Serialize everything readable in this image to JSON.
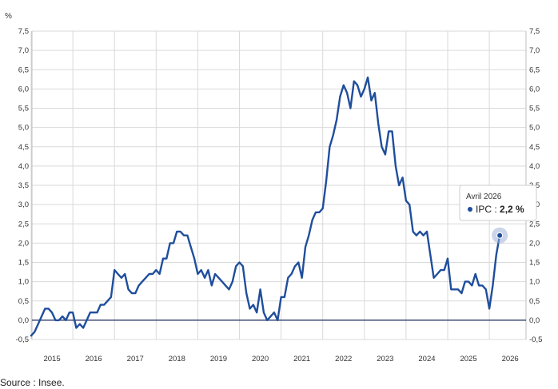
{
  "chart_data": {
    "type": "line",
    "unit_label": "%",
    "y_range": [
      -0.5,
      7.5
    ],
    "y_ticks": [
      "-0,5",
      "0,0",
      "0,5",
      "1,0",
      "1,5",
      "2,0",
      "2,5",
      "3,0",
      "3,5",
      "4,0",
      "4,5",
      "5,0",
      "5,5",
      "6,0",
      "6,5",
      "7,0",
      "7,5"
    ],
    "x_labels": [
      "2015",
      "2016",
      "2017",
      "2018",
      "2019",
      "2020",
      "2021",
      "2022",
      "2023",
      "2024",
      "2025",
      "2026"
    ],
    "line_color": "#1f4e9c",
    "grid": true,
    "series": [
      {
        "values": [
          -0.4,
          -0.3,
          -0.1,
          0.1,
          0.3,
          0.3,
          0.2,
          0.0,
          0.0,
          0.1,
          0.0,
          0.2,
          0.2,
          -0.2,
          -0.1,
          -0.2,
          0.0,
          0.2,
          0.2,
          0.2,
          0.4,
          0.4,
          0.5,
          0.6,
          1.3,
          1.2,
          1.1,
          1.2,
          0.8,
          0.7,
          0.7,
          0.9,
          1.0,
          1.1,
          1.2,
          1.2,
          1.3,
          1.2,
          1.6,
          1.6,
          2.0,
          2.0,
          2.3,
          2.3,
          2.2,
          2.2,
          1.9,
          1.6,
          1.2,
          1.3,
          1.1,
          1.3,
          0.9,
          1.2,
          1.1,
          1.0,
          0.9,
          0.8,
          1.0,
          1.4,
          1.5,
          1.4,
          0.7,
          0.3,
          0.4,
          0.2,
          0.8,
          0.2,
          0.0,
          0.1,
          0.2,
          0.0,
          0.6,
          0.6,
          1.1,
          1.2,
          1.4,
          1.5,
          1.1,
          1.9,
          2.2,
          2.6,
          2.8,
          2.8,
          2.9,
          3.6,
          4.5,
          4.8,
          5.2,
          5.8,
          6.1,
          5.9,
          5.5,
          6.2,
          6.1,
          5.8,
          6.0,
          6.3,
          5.7,
          5.9,
          5.1,
          4.5,
          4.3,
          4.9,
          4.9,
          4.0,
          3.5,
          3.7,
          3.1,
          3.0,
          2.3,
          2.2,
          2.3,
          2.2,
          2.3,
          1.7,
          1.1,
          1.2,
          1.3,
          1.3,
          1.6,
          0.8,
          0.8,
          0.8,
          0.7,
          1.0,
          1.0,
          0.9,
          1.2,
          0.9,
          0.9,
          0.8,
          0.3,
          0.9,
          1.7,
          2.2
        ]
      }
    ]
  },
  "tooltip": {
    "title": "Avril 2026",
    "label": "IPC : ",
    "value": "2,2 %"
  },
  "source_text": "Source : Insee."
}
